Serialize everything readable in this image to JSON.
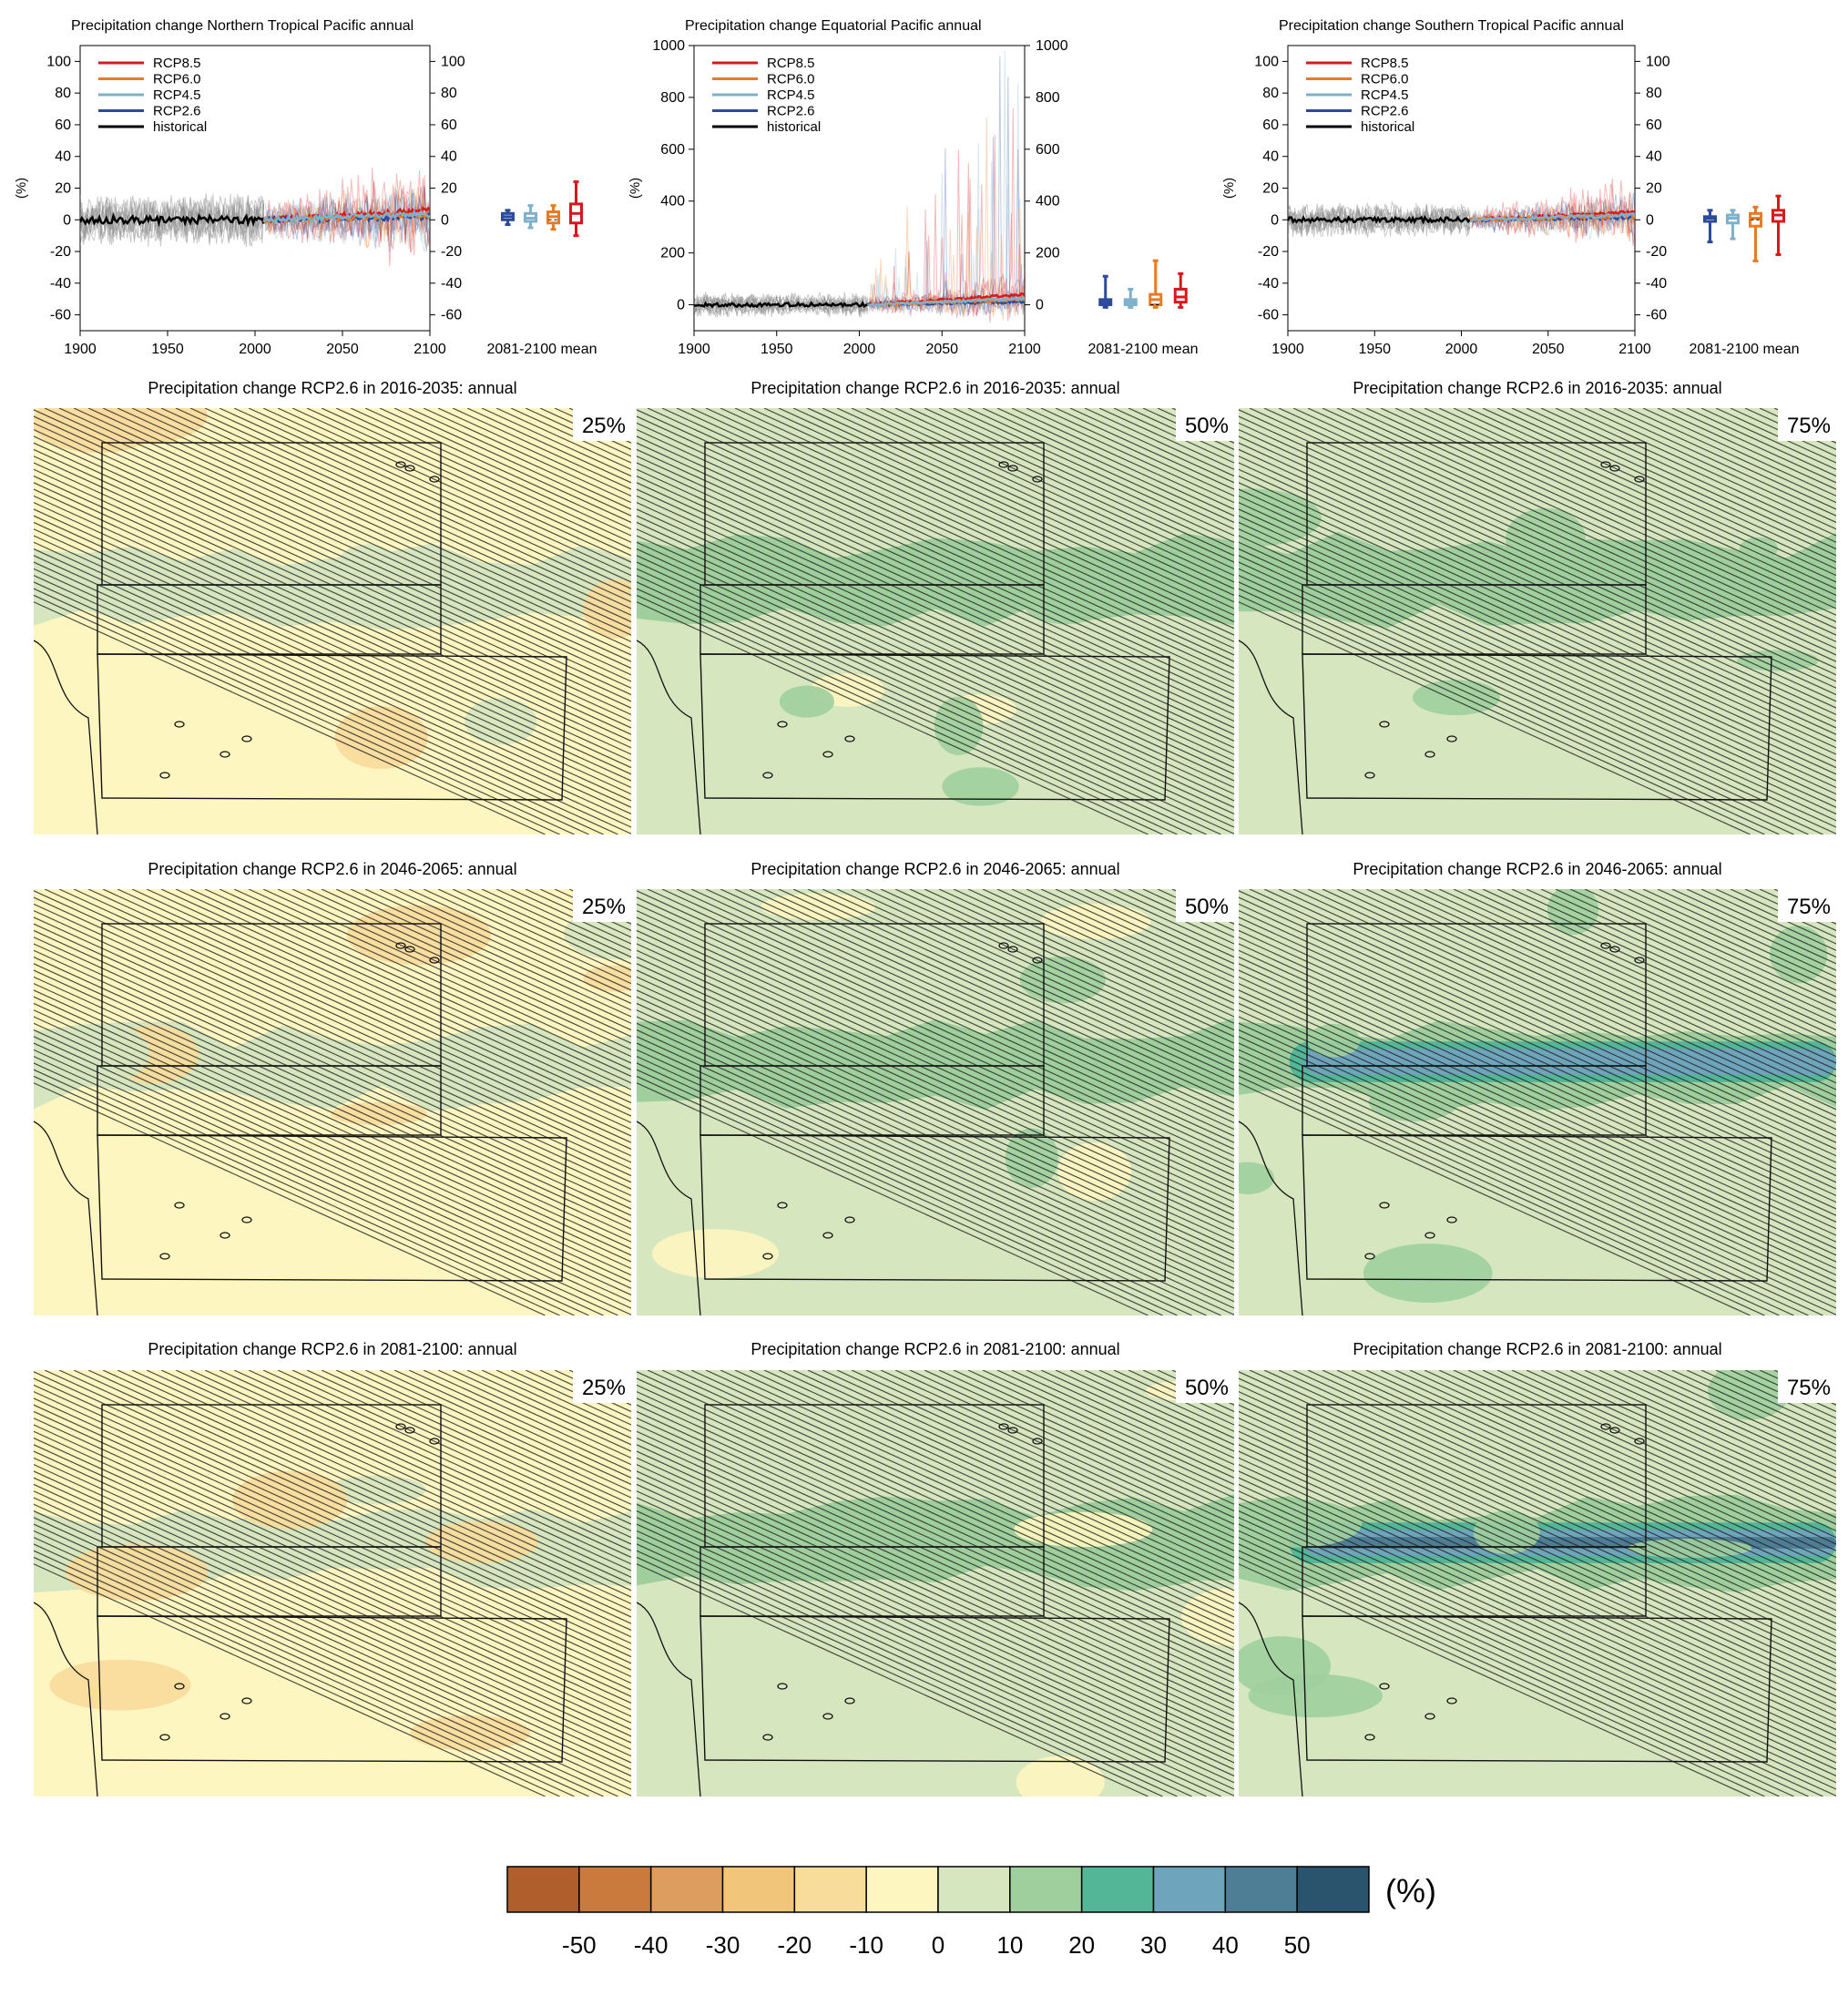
{
  "timeseries": [
    {
      "title": "Precipitation change Northern Tropical Pacific annual",
      "ylabel": "(%)",
      "yticks": [
        100,
        80,
        60,
        40,
        20,
        0,
        -20,
        -40,
        -60
      ],
      "ylim": [
        -70,
        110
      ],
      "xticks": [
        1900,
        1950,
        2000,
        2050,
        2100
      ],
      "xlim": [
        1900,
        2100
      ],
      "box_label": "2081-2100 mean",
      "noise": 14,
      "hist_mean": 0,
      "rcp_spread": 6,
      "boxes": [
        {
          "lo": -3,
          "q1": 0,
          "med": 2,
          "q3": 4,
          "hi": 6
        },
        {
          "lo": -5,
          "q1-1": 0,
          "q1": -1,
          "med": 1,
          "q3": 4,
          "hi": 9
        },
        {
          "lo": -6,
          "q1": -2,
          "med": 2,
          "q3": 5,
          "hi": 9
        },
        {
          "lo": -10,
          "q1": -2,
          "med": 4,
          "q3": 10,
          "hi": 24
        }
      ]
    },
    {
      "title": "Precipitation change Equatorial Pacific annual",
      "ylabel": "(%)",
      "yticks": [
        1000,
        800,
        600,
        400,
        200,
        0
      ],
      "ylim": [
        -100,
        1000
      ],
      "xticks": [
        1900,
        1950,
        2000,
        2050,
        2100
      ],
      "xlim": [
        1900,
        2100
      ],
      "box_label": "2081-2100 mean",
      "noise": 40,
      "hist_mean": 0,
      "rcp_spread": 40,
      "boxes": [
        {
          "lo": -10,
          "q1": 0,
          "med": 10,
          "q3": 20,
          "hi": 110
        },
        {
          "lo": -10,
          "q1": 0,
          "med": 10,
          "q3": 20,
          "hi": 60
        },
        {
          "lo": -10,
          "q1": 0,
          "med": 20,
          "q3": 40,
          "hi": 170
        },
        {
          "lo": -10,
          "q1": 10,
          "med": 30,
          "q3": 60,
          "hi": 120
        }
      ]
    },
    {
      "title": "Precipitation change Southern Tropical Pacific annual",
      "ylabel": "(%)",
      "yticks": [
        100,
        80,
        60,
        40,
        20,
        0,
        -20,
        -40,
        -60
      ],
      "ylim": [
        -70,
        110
      ],
      "xticks": [
        1900,
        1950,
        2000,
        2050,
        2100
      ],
      "xlim": [
        1900,
        2100
      ],
      "box_label": "2081-2100 mean",
      "noise": 9,
      "hist_mean": 0,
      "rcp_spread": 5,
      "boxes": [
        {
          "lo": -14,
          "q1": -1,
          "med": 1,
          "q3": 2,
          "hi": 6
        },
        {
          "lo": -12,
          "q1": -2,
          "med": 1,
          "q3": 3,
          "hi": 6
        },
        {
          "lo": -26,
          "q1": -4,
          "med": 1,
          "q3": 4,
          "hi": 8
        },
        {
          "lo": -22,
          "q1": -1,
          "med": 3,
          "q3": 6,
          "hi": 15
        }
      ]
    }
  ],
  "legend": [
    {
      "name": "RCP8.5",
      "color": "#d7191c"
    },
    {
      "name": "RCP6.0",
      "color": "#e87b23"
    },
    {
      "name": "RCP4.5",
      "color": "#7fb1cc"
    },
    {
      "name": "RCP2.6",
      "color": "#2c4a9a"
    },
    {
      "name": "historical",
      "color": "#000000"
    }
  ],
  "box_colors": [
    "#2c4a9a",
    "#7fb1cc",
    "#e87b23",
    "#d7191c"
  ],
  "maps": {
    "titles": [
      [
        "Precipitation change RCP2.6 in 2016-2035: annual",
        "Precipitation change RCP2.6 in 2016-2035: annual",
        "Precipitation change RCP2.6 in 2016-2035: annual"
      ],
      [
        "Precipitation change RCP2.6 in 2046-2065: annual",
        "Precipitation change RCP2.6 in 2046-2065: annual",
        "Precipitation change RCP2.6 in 2046-2065: annual"
      ],
      [
        "Precipitation change RCP2.6 in 2081-2100: annual",
        "Precipitation change RCP2.6 in 2081-2100: annual",
        "Precipitation change RCP2.6 in 2081-2100: annual"
      ]
    ],
    "percentiles": [
      "25%",
      "50%",
      "75%"
    ],
    "background": [
      [
        "#fef6c0",
        "#d6e7c0",
        "#d6e7c0"
      ],
      [
        "#fef6c0",
        "#d6e7c0",
        "#d6e7c0"
      ],
      [
        "#fef6c0",
        "#d6e7c0",
        "#d6e7c0"
      ]
    ],
    "band_level": [
      [
        10,
        20,
        20
      ],
      [
        10,
        20,
        40
      ],
      [
        10,
        20,
        50
      ]
    ]
  },
  "chart_data": {
    "type": "heatmap",
    "variable": "Precipitation change",
    "scenario": "RCP2.6",
    "periods": [
      "2016-2035",
      "2046-2065",
      "2081-2100"
    ],
    "percentiles": [
      "25%",
      "50%",
      "75%"
    ],
    "colorbar": {
      "unit": "(%)",
      "ticks": [
        -50,
        -40,
        -30,
        -20,
        -10,
        0,
        10,
        20,
        30,
        40,
        50
      ],
      "colors": [
        "#b05f2c",
        "#c97a3c",
        "#dc9d5e",
        "#f1c57a",
        "#f8dc9c",
        "#fef6c0",
        "#d6e7c0",
        "#9fcf9d",
        "#52b697",
        "#6ea5bc",
        "#4e7d96",
        "#2a536e"
      ]
    },
    "equatorial_band_max": [
      [
        10,
        20,
        20
      ],
      [
        10,
        20,
        40
      ],
      [
        10,
        20,
        50
      ]
    ]
  }
}
